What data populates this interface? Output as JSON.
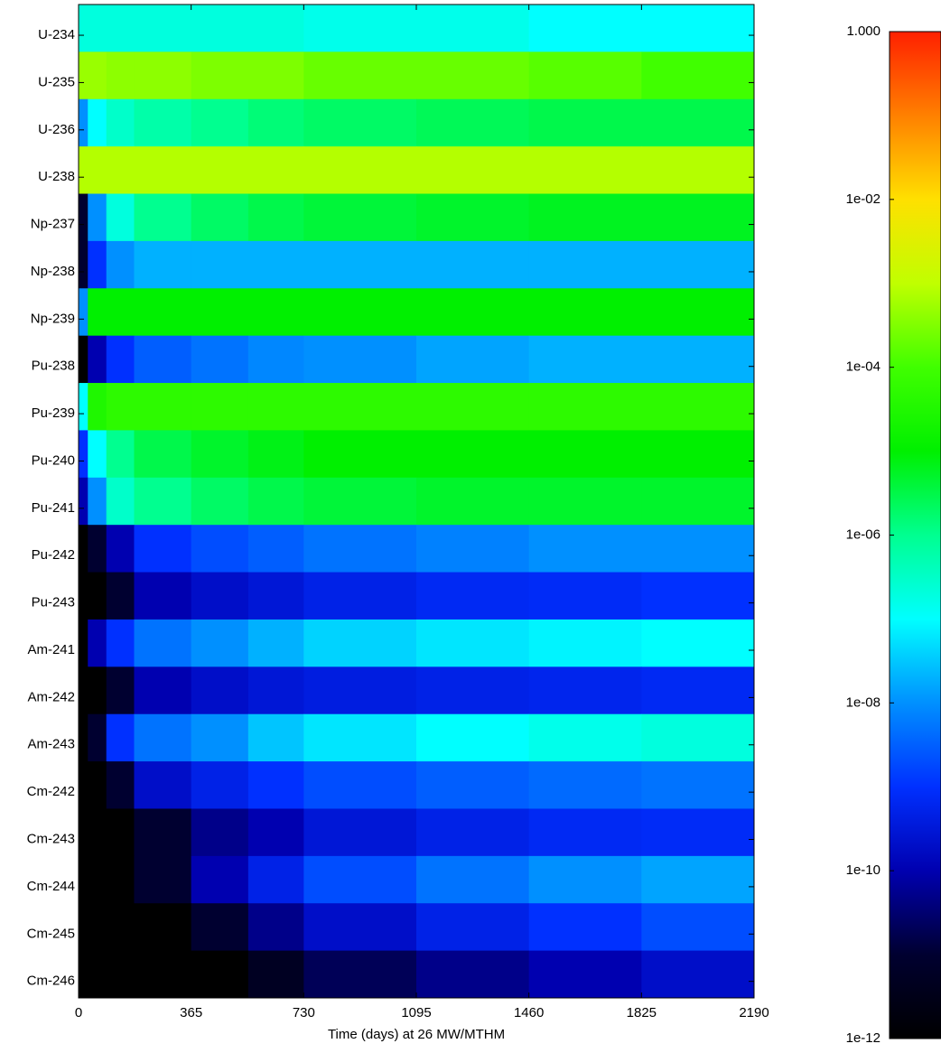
{
  "chart_data": {
    "type": "heatmap",
    "xlabel": "Time (days) at 26 MW/MTHM",
    "bins": [
      0,
      30,
      90,
      180,
      365,
      550,
      730,
      1095,
      1460,
      1825,
      2190
    ],
    "xlim": [
      0,
      2190
    ],
    "xticks": [
      0,
      365,
      730,
      1095,
      1460,
      1825,
      2190
    ],
    "categories": [
      "U-234",
      "U-235",
      "U-236",
      "U-238",
      "Np-237",
      "Np-238",
      "Np-239",
      "Pu-238",
      "Pu-239",
      "Pu-240",
      "Pu-241",
      "Pu-242",
      "Pu-243",
      "Am-241",
      "Am-242",
      "Am-243",
      "Cm-242",
      "Cm-243",
      "Cm-244",
      "Cm-245",
      "Cm-246"
    ],
    "values": [
      [
        2e-07,
        2e-07,
        2e-07,
        2e-07,
        2e-07,
        2e-07,
        1.5e-07,
        1.5e-07,
        1e-07,
        1e-07
      ],
      [
        0.0005,
        0.0005,
        0.0004,
        0.0004,
        0.0003,
        0.0003,
        0.0002,
        0.0002,
        0.00015,
        0.0001
      ],
      [
        1e-08,
        1e-07,
        3e-07,
        6e-07,
        1e-06,
        1.5e-06,
        2e-06,
        2.5e-06,
        3e-06,
        3e-06
      ],
      [
        0.0008,
        0.0008,
        0.0008,
        0.0008,
        0.0008,
        0.0008,
        0.0008,
        0.0008,
        0.0008,
        0.0008
      ],
      [
        1e-11,
        1e-08,
        2e-07,
        1e-06,
        2e-06,
        3e-06,
        4e-06,
        5e-06,
        6e-06,
        6e-06
      ],
      [
        1e-11,
        1e-09,
        1e-08,
        2e-08,
        2e-08,
        2e-08,
        2e-08,
        2e-08,
        2e-08,
        2e-08
      ],
      [
        1e-08,
        1e-05,
        1e-05,
        1e-05,
        1e-05,
        1e-05,
        1e-05,
        1e-05,
        1e-05,
        1e-05
      ],
      [
        1e-12,
        1e-10,
        1e-09,
        3e-09,
        5e-09,
        8e-09,
        1e-08,
        1.5e-08,
        2e-08,
        2e-08
      ],
      [
        1e-07,
        3e-05,
        5e-05,
        5e-05,
        5e-05,
        5e-05,
        5e-05,
        5e-05,
        5e-05,
        5e-05
      ],
      [
        1e-09,
        1e-07,
        1e-06,
        3e-06,
        5e-06,
        7e-06,
        1e-05,
        1e-05,
        1e-05,
        1e-05
      ],
      [
        1e-10,
        1e-08,
        3e-07,
        1e-06,
        2e-06,
        3e-06,
        4e-06,
        5e-06,
        5e-06,
        5e-06
      ],
      [
        1e-12,
        1e-11,
        1e-10,
        1e-09,
        2e-09,
        3e-09,
        5e-09,
        7e-09,
        1e-08,
        1e-08
      ],
      [
        1e-12,
        1e-12,
        1e-11,
        1e-10,
        2e-10,
        3e-10,
        5e-10,
        7e-10,
        8e-10,
        1e-09
      ],
      [
        1e-12,
        1e-10,
        1e-09,
        5e-09,
        1e-08,
        2e-08,
        4e-08,
        6e-08,
        8e-08,
        1e-07
      ],
      [
        1e-12,
        1e-12,
        1e-11,
        1e-10,
        2e-10,
        3e-10,
        4e-10,
        5e-10,
        6e-10,
        7e-10
      ],
      [
        1e-12,
        1e-11,
        1e-09,
        5e-09,
        1e-08,
        3e-08,
        6e-08,
        1e-07,
        1.5e-07,
        2e-07
      ],
      [
        1e-12,
        1e-12,
        1e-11,
        2e-10,
        5e-10,
        1e-09,
        2e-09,
        3e-09,
        4e-09,
        5e-09
      ],
      [
        1e-12,
        1e-12,
        1e-12,
        1e-11,
        5e-11,
        1e-10,
        3e-10,
        5e-10,
        7e-10,
        8e-10
      ],
      [
        1e-12,
        1e-12,
        1e-12,
        1e-11,
        1e-10,
        5e-10,
        2e-09,
        5e-09,
        1e-08,
        1.5e-08
      ],
      [
        1e-12,
        1e-12,
        1e-12,
        1e-12,
        1e-11,
        5e-11,
        2e-10,
        5e-10,
        1e-09,
        2e-09
      ],
      [
        1e-12,
        1e-12,
        1e-12,
        1e-12,
        1e-12,
        5e-12,
        2e-11,
        5e-11,
        1e-10,
        2e-10
      ]
    ],
    "colormap": [
      "#000000",
      "#000030",
      "#0000b0",
      "#0030ff",
      "#0090ff",
      "#00ffff",
      "#00ff90",
      "#00f000",
      "#40ff00",
      "#c0ff00",
      "#ffe000",
      "#ff8000",
      "#ff2000"
    ],
    "colorbar": {
      "scale": "log",
      "lim": [
        1e-12,
        1
      ],
      "ticks": [
        {
          "value": 1,
          "label": "1.000"
        },
        {
          "value": 0.01,
          "label": "1e-02"
        },
        {
          "value": 0.0001,
          "label": "1e-04"
        },
        {
          "value": 1e-06,
          "label": "1e-06"
        },
        {
          "value": 1e-08,
          "label": "1e-08"
        },
        {
          "value": 1e-10,
          "label": "1e-10"
        },
        {
          "value": 1e-12,
          "label": "1e-12"
        }
      ]
    }
  }
}
